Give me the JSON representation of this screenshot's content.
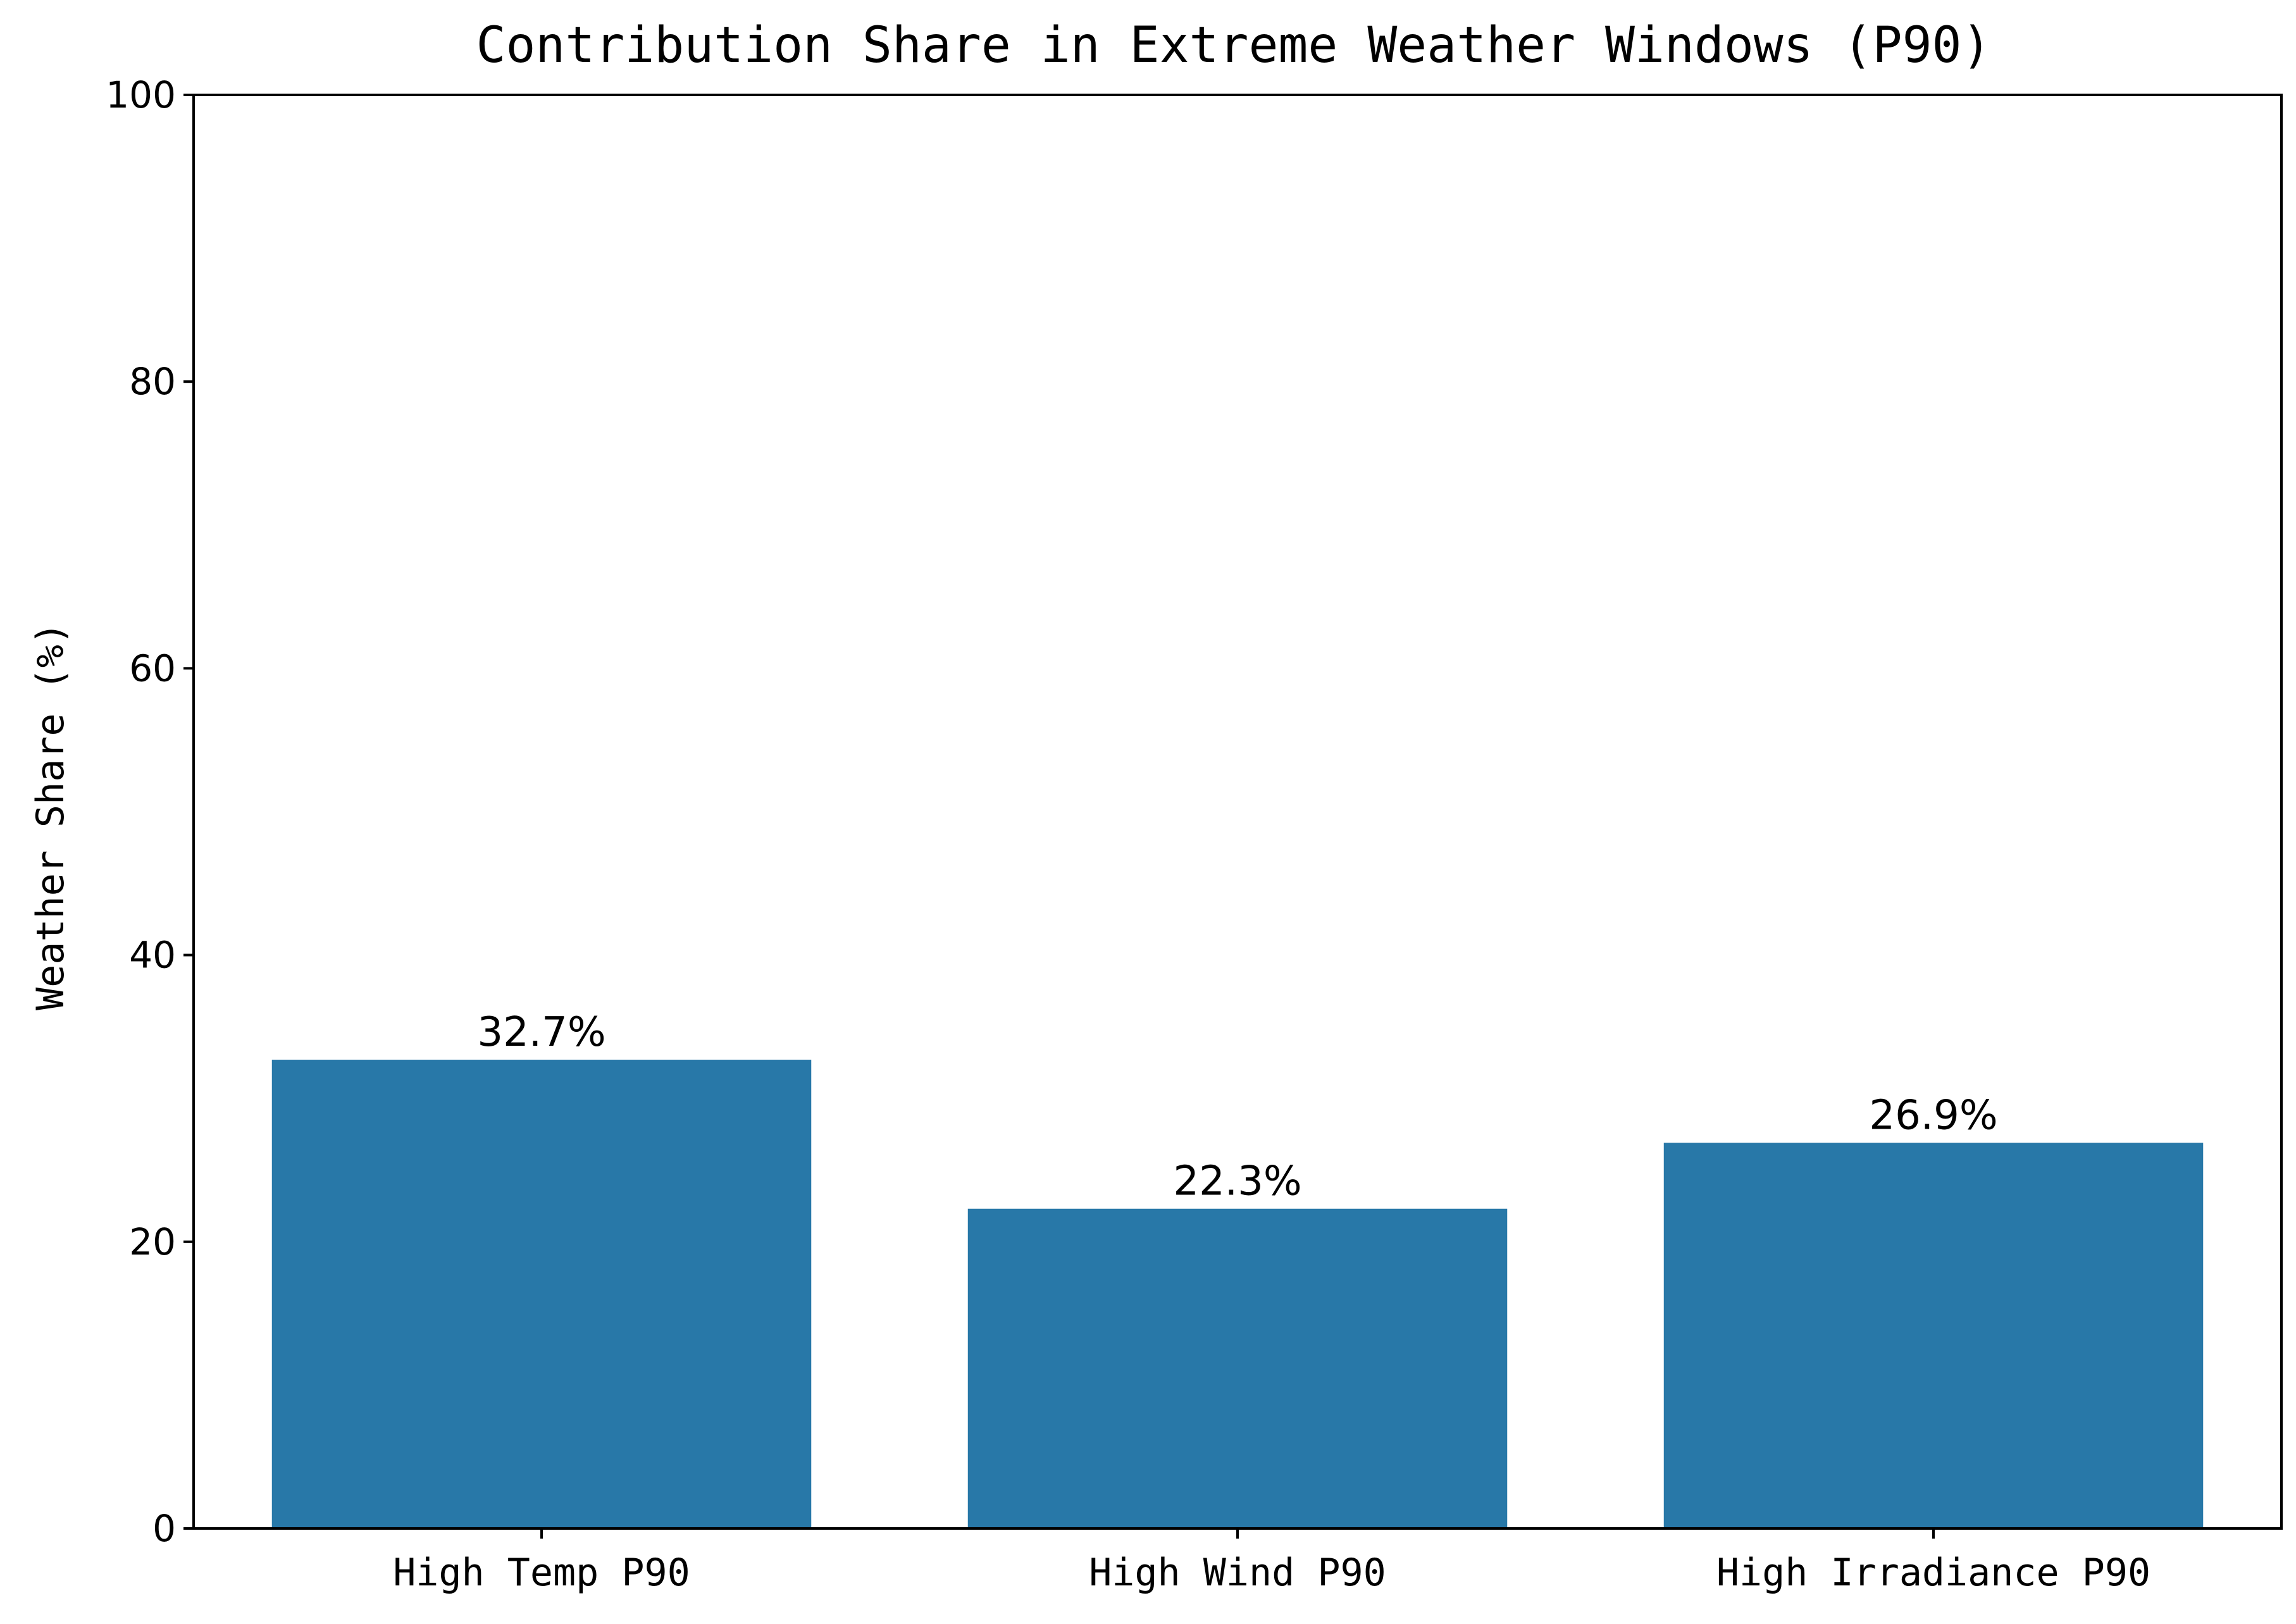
{
  "chart_data": {
    "type": "bar",
    "title": "Contribution Share in Extreme Weather Windows (P90)",
    "xlabel": "",
    "ylabel": "Weather Share (%)",
    "categories": [
      "High Temp P90",
      "High Wind P90",
      "High Irradiance P90"
    ],
    "values": [
      32.7,
      22.3,
      26.9
    ],
    "data_labels": [
      "32.7%",
      "22.3%",
      "26.9%"
    ],
    "ylim": [
      0,
      100
    ],
    "yticks": [
      0,
      20,
      40,
      60,
      80,
      100
    ],
    "ytick_labels": [
      "0",
      "20",
      "40",
      "60",
      "80",
      "100"
    ],
    "grid": false,
    "bar_color": "#2878a8"
  }
}
